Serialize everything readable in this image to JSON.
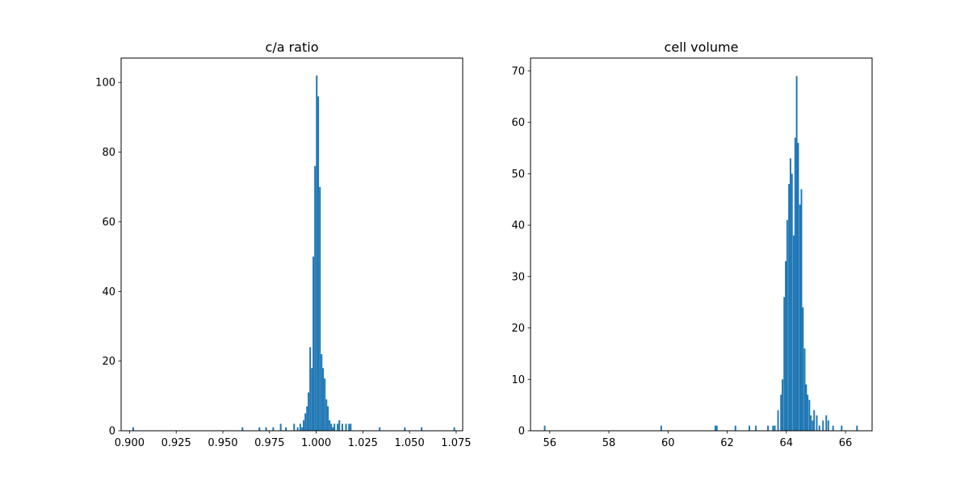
{
  "figure": {
    "background": "#ffffff",
    "bar_color": "#1f77b4"
  },
  "chart_data": [
    {
      "type": "bar",
      "title": "c/a ratio",
      "xlabel": "",
      "ylabel": "",
      "xlim": [
        0.8955,
        1.0785
      ],
      "ylim": [
        0,
        107
      ],
      "xticks": [
        0.9,
        0.925,
        0.95,
        0.975,
        1.0,
        1.025,
        1.05,
        1.075
      ],
      "xtick_labels": [
        "0.900",
        "0.925",
        "0.950",
        "0.975",
        "1.000",
        "1.025",
        "1.050",
        "1.075"
      ],
      "yticks": [
        0,
        20,
        40,
        60,
        80,
        100
      ],
      "ytick_labels": [
        "0",
        "20",
        "40",
        "60",
        "80",
        "100"
      ],
      "bin_width": 0.00087,
      "bins": [
        [
          0.902,
          1
        ],
        [
          0.9605,
          1
        ],
        [
          0.9696,
          1
        ],
        [
          0.9732,
          1
        ],
        [
          0.977,
          1
        ],
        [
          0.981,
          2
        ],
        [
          0.9838,
          1
        ],
        [
          0.9882,
          2
        ],
        [
          0.9901,
          1
        ],
        [
          0.9915,
          2
        ],
        [
          0.9925,
          1
        ],
        [
          0.9933,
          3
        ],
        [
          0.9942,
          5
        ],
        [
          0.9951,
          7
        ],
        [
          0.9959,
          11
        ],
        [
          0.9968,
          24
        ],
        [
          0.9977,
          18
        ],
        [
          0.9985,
          50
        ],
        [
          0.9994,
          76
        ],
        [
          1.0003,
          102
        ],
        [
          1.0011,
          96
        ],
        [
          1.002,
          70
        ],
        [
          1.0029,
          22
        ],
        [
          1.0037,
          18
        ],
        [
          1.0046,
          15
        ],
        [
          1.0055,
          9
        ],
        [
          1.0063,
          7
        ],
        [
          1.0072,
          3
        ],
        [
          1.0081,
          2
        ],
        [
          1.009,
          1
        ],
        [
          1.0098,
          2
        ],
        [
          1.0115,
          2
        ],
        [
          1.0124,
          3
        ],
        [
          1.014,
          2
        ],
        [
          1.016,
          2
        ],
        [
          1.0176,
          2
        ],
        [
          1.0185,
          2
        ],
        [
          1.034,
          1
        ],
        [
          1.0475,
          1
        ],
        [
          1.0565,
          1
        ],
        [
          1.074,
          1
        ]
      ]
    },
    {
      "type": "bar",
      "title": "cell volume",
      "xlabel": "",
      "ylabel": "",
      "xlim": [
        55.35,
        66.9
      ],
      "ylim": [
        0,
        72.5
      ],
      "xticks": [
        56,
        58,
        60,
        62,
        64,
        66
      ],
      "xtick_labels": [
        "56",
        "58",
        "60",
        "62",
        "64",
        "66"
      ],
      "yticks": [
        0,
        10,
        20,
        30,
        40,
        50,
        60,
        70
      ],
      "ytick_labels": [
        "0",
        "10",
        "20",
        "30",
        "40",
        "50",
        "60",
        "70"
      ],
      "bin_width": 0.0535,
      "bins": [
        [
          55.83,
          1
        ],
        [
          59.77,
          1
        ],
        [
          61.6,
          1
        ],
        [
          61.65,
          1
        ],
        [
          62.28,
          1
        ],
        [
          62.75,
          1
        ],
        [
          62.97,
          1
        ],
        [
          63.38,
          1
        ],
        [
          63.55,
          1
        ],
        [
          63.61,
          1
        ],
        [
          63.72,
          4
        ],
        [
          63.82,
          7
        ],
        [
          63.87,
          10
        ],
        [
          63.93,
          26
        ],
        [
          63.98,
          33
        ],
        [
          64.03,
          41
        ],
        [
          64.09,
          48
        ],
        [
          64.14,
          53
        ],
        [
          64.19,
          50
        ],
        [
          64.25,
          38
        ],
        [
          64.3,
          57
        ],
        [
          64.35,
          69
        ],
        [
          64.4,
          56
        ],
        [
          64.46,
          44
        ],
        [
          64.51,
          47
        ],
        [
          64.56,
          24
        ],
        [
          64.62,
          16
        ],
        [
          64.67,
          9
        ],
        [
          64.72,
          7
        ],
        [
          64.78,
          6
        ],
        [
          64.83,
          3
        ],
        [
          64.89,
          2
        ],
        [
          64.94,
          4
        ],
        [
          65.03,
          3
        ],
        [
          65.12,
          1
        ],
        [
          65.24,
          2
        ],
        [
          65.35,
          3
        ],
        [
          65.42,
          2
        ],
        [
          65.58,
          1
        ],
        [
          65.87,
          1
        ],
        [
          66.39,
          1
        ]
      ]
    }
  ]
}
